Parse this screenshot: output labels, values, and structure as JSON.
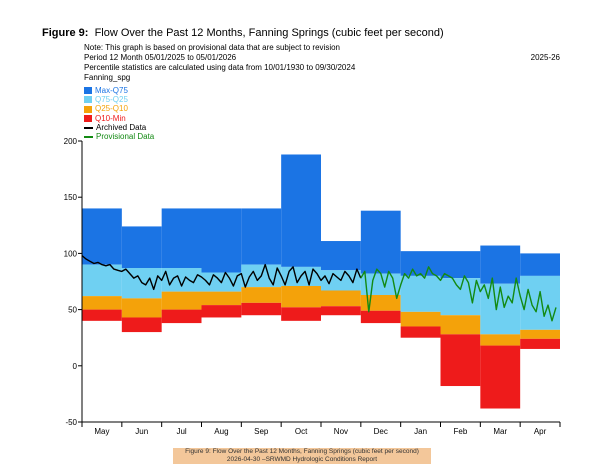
{
  "figure": {
    "label": "Figure 9:",
    "title": "Flow Over the Past 12 Months, Fanning Springs (cubic feet per second)"
  },
  "notes": {
    "line1": "Note: This graph is based on provisional data that are subject to revision",
    "line2": "Period   12 Month  05/01/2025  to  05/01/2026",
    "year": "2025-26",
    "line3": "Percentile statistics are calculated using data from 10/01/1930 to 09/30/2024",
    "line4": "Fanning_spg"
  },
  "legend": {
    "max_q75": "Max-Q75",
    "q75_q25": "Q75-Q25",
    "q25_q10": "Q25-Q10",
    "q10_min": "Q10-Min",
    "archived": "Archived Data",
    "provisional": "Provisional Data"
  },
  "colors": {
    "max_q75": "#1b74e4",
    "q75_q25": "#6fd0f2",
    "q25_q10": "#f4a20a",
    "q10_min": "#ee1b1b",
    "archived": "#000000",
    "provisional": "#138a13"
  },
  "caption": {
    "line1": "Figure 9: Flow Over the Past 12 Months, Fanning Springs (cubic feet per second)",
    "line2": "2026-04-30 –SRWMD Hydrologic Conditions Report"
  },
  "chart_data": {
    "type": "area",
    "ylim": [
      -50,
      200
    ],
    "yticks": [
      -50,
      0,
      50,
      100,
      150,
      200
    ],
    "xlim": [
      0,
      12
    ],
    "months": [
      "May",
      "Jun",
      "Jul",
      "Aug",
      "Sep",
      "Oct",
      "Nov",
      "Dec",
      "Jan",
      "Feb",
      "Mar",
      "Apr"
    ],
    "percentile_bands": {
      "max": [
        140,
        124,
        140,
        140,
        140,
        188,
        111,
        138,
        102,
        102,
        107,
        100
      ],
      "q75": [
        90,
        87,
        87,
        83,
        90,
        88,
        85,
        82,
        80,
        78,
        73,
        80
      ],
      "q25": [
        62,
        60,
        66,
        66,
        70,
        71,
        67,
        63,
        48,
        45,
        28,
        32
      ],
      "q10": [
        50,
        43,
        50,
        54,
        56,
        52,
        53,
        49,
        35,
        28,
        18,
        24
      ],
      "min": [
        40,
        30,
        38,
        43,
        45,
        40,
        45,
        38,
        25,
        -18,
        -38,
        15
      ]
    },
    "series": [
      {
        "name": "Archived Data",
        "x": [
          0.0,
          0.1,
          0.2,
          0.3,
          0.4,
          0.5,
          0.6,
          0.7,
          0.8,
          0.9,
          1.0,
          1.1,
          1.2,
          1.3,
          1.4,
          1.5,
          1.6,
          1.7,
          1.8,
          1.9,
          2.0,
          2.1,
          2.2,
          2.3,
          2.4,
          2.5,
          2.6,
          2.7,
          2.8,
          2.9,
          3.0,
          3.1,
          3.2,
          3.3,
          3.4,
          3.5,
          3.6,
          3.7,
          3.8,
          3.9,
          4.0,
          4.1,
          4.2,
          4.3,
          4.4,
          4.5,
          4.6,
          4.7,
          4.8,
          4.9,
          5.0,
          5.1,
          5.2,
          5.3,
          5.4,
          5.5,
          5.6,
          5.7,
          5.8,
          5.9,
          6.0,
          6.1,
          6.2,
          6.3,
          6.4,
          6.5,
          6.6,
          6.7,
          6.8,
          6.9,
          7.0
        ],
        "y": [
          98,
          95,
          93,
          91,
          92,
          90,
          89,
          90,
          86,
          85,
          84,
          86,
          82,
          78,
          80,
          74,
          72,
          78,
          68,
          80,
          76,
          84,
          72,
          78,
          80,
          71,
          79,
          76,
          74,
          81,
          79,
          76,
          72,
          81,
          78,
          74,
          83,
          78,
          71,
          80,
          82,
          70,
          79,
          84,
          76,
          80,
          90,
          78,
          72,
          87,
          80,
          72,
          84,
          88,
          74,
          80,
          84,
          72,
          86,
          82,
          76,
          80,
          73,
          82,
          79,
          76,
          84,
          80,
          74,
          86,
          78
        ]
      },
      {
        "name": "Provisional Data",
        "x": [
          7.0,
          7.1,
          7.2,
          7.3,
          7.4,
          7.5,
          7.6,
          7.7,
          7.8,
          7.9,
          8.0,
          8.1,
          8.2,
          8.3,
          8.4,
          8.5,
          8.6,
          8.7,
          8.8,
          8.9,
          9.0,
          9.1,
          9.2,
          9.3,
          9.4,
          9.5,
          9.6,
          9.7,
          9.8,
          9.9,
          10.0,
          10.1,
          10.2,
          10.3,
          10.4,
          10.5,
          10.6,
          10.7,
          10.8,
          10.9,
          11.0,
          11.1,
          11.2,
          11.3,
          11.4,
          11.5,
          11.6,
          11.7,
          11.8,
          11.9
        ],
        "y": [
          78,
          84,
          48,
          76,
          86,
          82,
          70,
          84,
          78,
          60,
          72,
          82,
          78,
          86,
          80,
          82,
          78,
          88,
          82,
          80,
          76,
          82,
          80,
          78,
          72,
          68,
          80,
          74,
          56,
          76,
          66,
          72,
          60,
          78,
          50,
          70,
          52,
          62,
          56,
          78,
          62,
          50,
          68,
          54,
          48,
          66,
          44,
          54,
          40,
          52
        ]
      }
    ]
  }
}
